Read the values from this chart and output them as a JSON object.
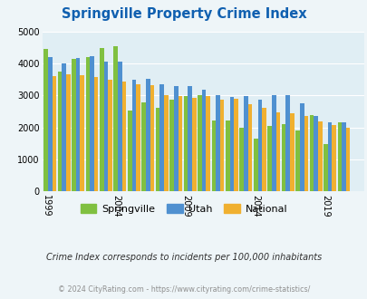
{
  "title": "Springville Property Crime Index",
  "years": [
    1999,
    2000,
    2001,
    2002,
    2003,
    2004,
    2005,
    2006,
    2007,
    2008,
    2009,
    2010,
    2011,
    2012,
    2013,
    2014,
    2015,
    2016,
    2017,
    2018,
    2019,
    2020,
    2021
  ],
  "springville": [
    4450,
    3750,
    4150,
    4200,
    4480,
    4550,
    2520,
    2780,
    2600,
    2870,
    2980,
    3000,
    2220,
    2220,
    2000,
    1650,
    2040,
    2100,
    1900,
    2380,
    1490,
    2150,
    0
  ],
  "utah": [
    4200,
    4000,
    4180,
    4230,
    4050,
    4050,
    3500,
    3520,
    3340,
    3300,
    3280,
    3180,
    3000,
    2960,
    2970,
    2870,
    3020,
    3000,
    2760,
    2360,
    2170,
    2150,
    0
  ],
  "national": [
    3600,
    3670,
    3620,
    3570,
    3500,
    3440,
    3360,
    3310,
    3000,
    2970,
    2910,
    2970,
    2870,
    2900,
    2720,
    2600,
    2480,
    2450,
    2350,
    2200,
    2080,
    1990,
    0
  ],
  "springville_color": "#80c040",
  "utah_color": "#4f90d0",
  "national_color": "#f0b030",
  "background_color": "#eef5f8",
  "plot_bg_color": "#e0eef4",
  "ylim": [
    0,
    5000
  ],
  "yticks": [
    0,
    1000,
    2000,
    3000,
    4000,
    5000
  ],
  "xtick_years": [
    1999,
    2004,
    2009,
    2014,
    2019
  ],
  "subtitle": "Crime Index corresponds to incidents per 100,000 inhabitants",
  "footer": "© 2024 CityRating.com - https://www.cityrating.com/crime-statistics/",
  "title_color": "#1060b0",
  "subtitle_color": "#303030",
  "footer_color": "#909090"
}
